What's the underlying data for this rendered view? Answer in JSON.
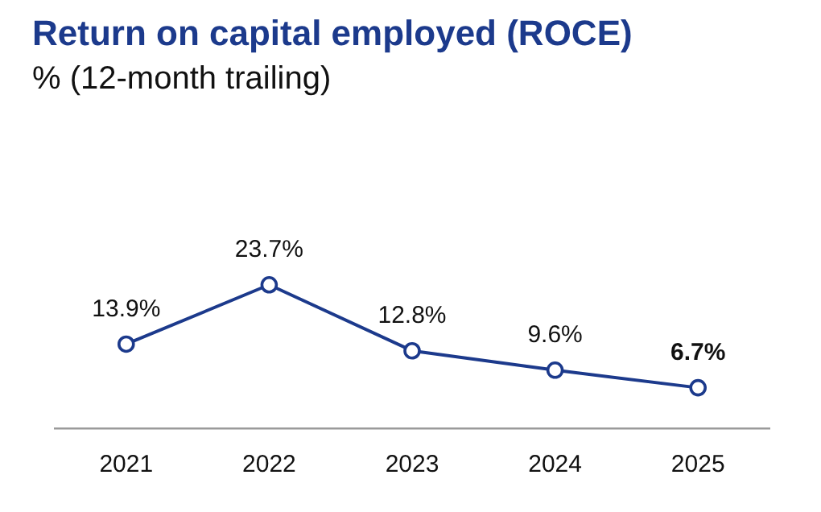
{
  "chart_data": {
    "type": "line",
    "title": "Return on capital employed (ROCE)",
    "subtitle": "% (12-month trailing)",
    "categories": [
      "2021",
      "2022",
      "2023",
      "2024",
      "2025"
    ],
    "series": [
      {
        "color": "#1c3a8c",
        "values": [
          13.9,
          23.7,
          12.8,
          9.6,
          6.7
        ],
        "value_labels": [
          "13.9%",
          "23.7%",
          "12.8%",
          "9.6%",
          "6.7%"
        ]
      }
    ],
    "tick_labels": "x",
    "grid": false,
    "legend": false,
    "marker": "circle",
    "line_style": "solid"
  }
}
